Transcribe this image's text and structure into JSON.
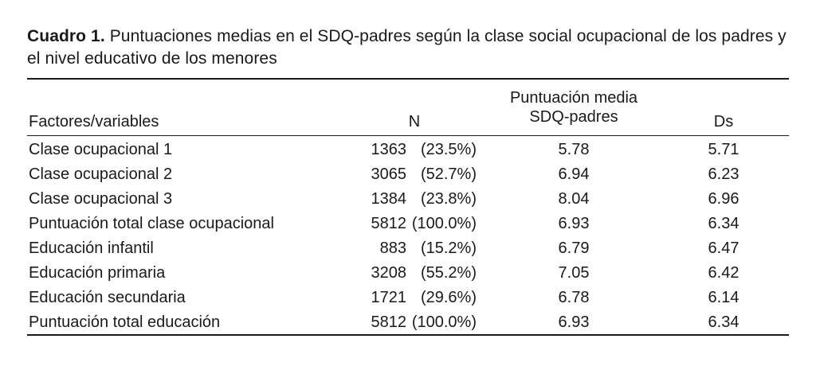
{
  "caption": {
    "label": "Cuadro 1.",
    "text": "Puntuaciones medias en el SDQ-padres según la clase social ocupacional de los padres y el nivel educativo de los menores"
  },
  "headers": {
    "factor": "Factores/variables",
    "n": "N",
    "mean_line1": "Puntuación media",
    "mean_line2": "SDQ-padres",
    "ds": "Ds"
  },
  "rows": [
    {
      "name": "Clase ocupacional 1",
      "count": "1363",
      "pct": "(23.5%)",
      "mean": "5.78",
      "ds": "5.71"
    },
    {
      "name": "Clase ocupacional 2",
      "count": "3065",
      "pct": "(52.7%)",
      "mean": "6.94",
      "ds": "6.23"
    },
    {
      "name": "Clase ocupacional 3",
      "count": "1384",
      "pct": "(23.8%)",
      "mean": "8.04",
      "ds": "6.96"
    },
    {
      "name": "Puntuación total clase ocupacional",
      "count": "5812",
      "pct": "(100.0%)",
      "mean": "6.93",
      "ds": "6.34"
    },
    {
      "name": "Educación infantil",
      "count": "883",
      "pct": "(15.2%)",
      "mean": "6.79",
      "ds": "6.47"
    },
    {
      "name": "Educación primaria",
      "count": "3208",
      "pct": "(55.2%)",
      "mean": "7.05",
      "ds": "6.42"
    },
    {
      "name": "Educación secundaria",
      "count": "1721",
      "pct": "(29.6%)",
      "mean": "6.78",
      "ds": "6.14"
    },
    {
      "name": "Puntuación total educación",
      "count": "5812",
      "pct": "(100.0%)",
      "mean": "6.93",
      "ds": "6.34"
    }
  ]
}
